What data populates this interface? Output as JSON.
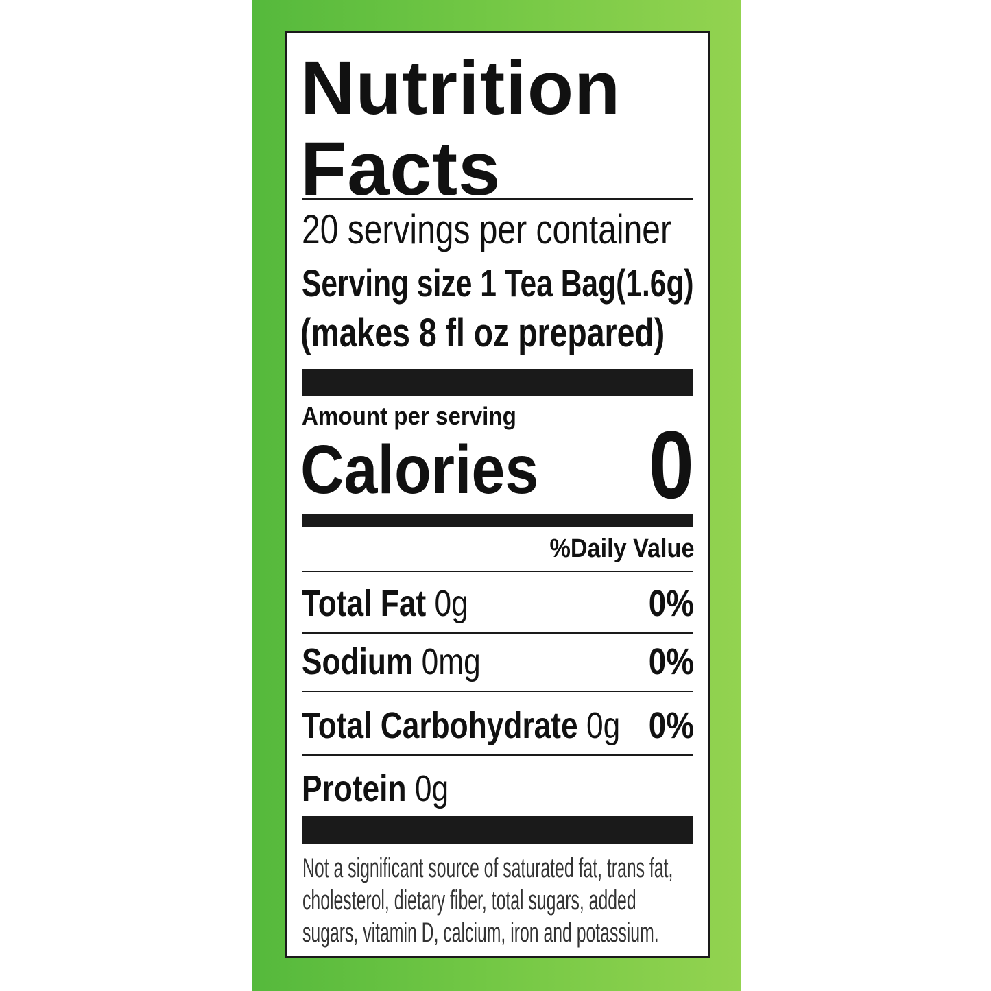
{
  "label": {
    "title": "Nutrition Facts",
    "servings": "20 servings per container",
    "serving_size": "Serving size 1 Tea Bag(1.6g)",
    "prepared": "(makes 8 fl oz prepared)",
    "amount_per_serving": "Amount per serving",
    "calories_label": "Calories",
    "calories_value": "0",
    "daily_value_header": "%Daily Value",
    "rows": [
      {
        "name": "Total Fat",
        "amount": "0g",
        "dv": "0%"
      },
      {
        "name": "Sodium",
        "amount": "0mg",
        "dv": "0%"
      },
      {
        "name": "Total Carbohydrate",
        "amount": "0g",
        "dv": "0%"
      },
      {
        "name": "Protein",
        "amount": "0g"
      }
    ],
    "footnote": [
      "Not a significant source of saturated fat, trans fat,",
      "cholesterol, dietary fiber, total sugars, added",
      "sugars, vitamin D, calcium, iron and potassium."
    ]
  }
}
